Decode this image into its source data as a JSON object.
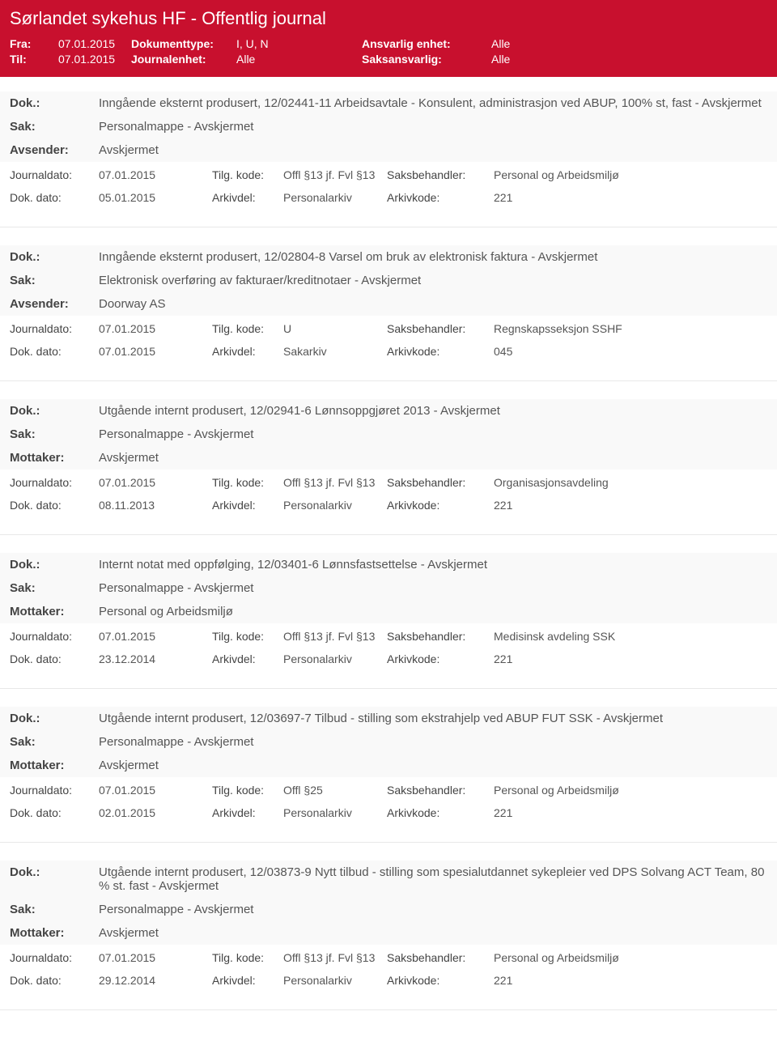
{
  "header": {
    "title": "Sørlandet sykehus HF - Offentlig journal",
    "labels": {
      "fra": "Fra:",
      "til": "Til:",
      "dokType": "Dokumenttype:",
      "jEnhet": "Journalenhet:",
      "ansvEnhet": "Ansvarlig enhet:",
      "saksansv": "Saksansvarlig:"
    },
    "fra": "07.01.2015",
    "til": "07.01.2015",
    "dokType": "I, U, N",
    "jEnhet": "Alle",
    "ansvEnhet": "Alle",
    "saksansv": "Alle"
  },
  "labels": {
    "dok": "Dok.:",
    "sak": "Sak:",
    "avsender": "Avsender:",
    "mottaker": "Mottaker:",
    "journaldato": "Journaldato:",
    "dokdato": "Dok. dato:",
    "tilgKode": "Tilg. kode:",
    "arkivdel": "Arkivdel:",
    "saksbeh": "Saksbehandler:",
    "arkivkode": "Arkivkode:"
  },
  "entries": [
    {
      "dok": "Inngående eksternt produsert, 12/02441-11 Arbeidsavtale - Konsulent, administrasjon ved ABUP, 100% st, fast - Avskjermet",
      "sak": "Personalmappe - Avskjermet",
      "partyLabel": "avsender",
      "party": "Avskjermet",
      "journaldato": "07.01.2015",
      "dokdato": "05.01.2015",
      "tilgKode": "Offl §13 jf. Fvl §13",
      "arkivdel": "Personalarkiv",
      "saksbeh": "Personal og Arbeidsmiljø",
      "arkivkode": "221"
    },
    {
      "dok": "Inngående eksternt produsert, 12/02804-8 Varsel om bruk av elektronisk faktura - Avskjermet",
      "sak": "Elektronisk overføring av fakturaer/kreditnotaer - Avskjermet",
      "partyLabel": "avsender",
      "party": "Doorway AS",
      "journaldato": "07.01.2015",
      "dokdato": "07.01.2015",
      "tilgKode": "U",
      "arkivdel": "Sakarkiv",
      "saksbeh": "Regnskapsseksjon SSHF",
      "arkivkode": "045"
    },
    {
      "dok": "Utgående internt produsert, 12/02941-6 Lønnsoppgjøret 2013 - Avskjermet",
      "sak": "Personalmappe - Avskjermet",
      "partyLabel": "mottaker",
      "party": "Avskjermet",
      "journaldato": "07.01.2015",
      "dokdato": "08.11.2013",
      "tilgKode": "Offl §13 jf. Fvl §13",
      "arkivdel": "Personalarkiv",
      "saksbeh": "Organisasjonsavdeling",
      "arkivkode": "221"
    },
    {
      "dok": "Internt notat med oppfølging, 12/03401-6 Lønnsfastsettelse - Avskjermet",
      "sak": "Personalmappe - Avskjermet",
      "partyLabel": "mottaker",
      "party": "Personal og Arbeidsmiljø",
      "journaldato": "07.01.2015",
      "dokdato": "23.12.2014",
      "tilgKode": "Offl §13 jf. Fvl §13",
      "arkivdel": "Personalarkiv",
      "saksbeh": "Medisinsk avdeling SSK",
      "arkivkode": "221"
    },
    {
      "dok": "Utgående internt produsert, 12/03697-7 Tilbud - stilling som ekstrahjelp ved ABUP FUT SSK - Avskjermet",
      "sak": "Personalmappe - Avskjermet",
      "partyLabel": "mottaker",
      "party": "Avskjermet",
      "journaldato": "07.01.2015",
      "dokdato": "02.01.2015",
      "tilgKode": "Offl §25",
      "arkivdel": "Personalarkiv",
      "saksbeh": "Personal og Arbeidsmiljø",
      "arkivkode": "221"
    },
    {
      "dok": "Utgående internt produsert, 12/03873-9 Nytt tilbud - stilling som spesialutdannet sykepleier ved DPS Solvang ACT Team, 80 % st. fast - Avskjermet",
      "sak": "Personalmappe - Avskjermet",
      "partyLabel": "mottaker",
      "party": "Avskjermet",
      "journaldato": "07.01.2015",
      "dokdato": "29.12.2014",
      "tilgKode": "Offl §13 jf. Fvl §13",
      "arkivdel": "Personalarkiv",
      "saksbeh": "Personal og Arbeidsmiljø",
      "arkivkode": "221"
    }
  ]
}
